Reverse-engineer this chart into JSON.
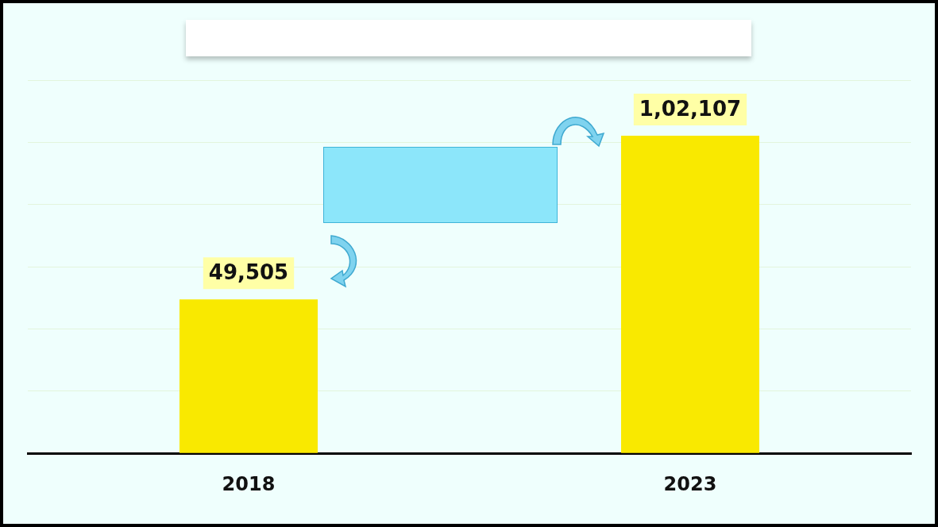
{
  "chart_data": {
    "type": "bar",
    "categories": [
      "2018",
      "2023"
    ],
    "values": [
      49505,
      102107
    ],
    "color": "#f9e900",
    "value_labels": [
      "49,505",
      "1,02,107"
    ],
    "ylim": [
      0,
      120000
    ],
    "yticks": [
      {
        "value": 0,
        "label": null
      },
      {
        "value": 20000,
        "label": null
      },
      {
        "value": 40000,
        "label": null
      },
      {
        "value": 60000,
        "label": null
      },
      {
        "value": 80000,
        "label": null
      },
      {
        "value": 100000,
        "label": null
      },
      {
        "value": 120000,
        "label": null
      }
    ],
    "tick_labels": "x",
    "grid": "y",
    "legend": false
  }
}
